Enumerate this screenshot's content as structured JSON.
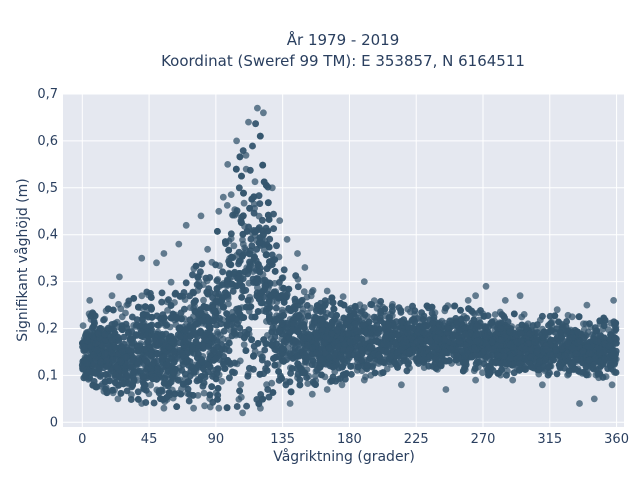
{
  "chart_data": {
    "type": "scatter",
    "title": "År 1979 - 2019",
    "subtitle": "Koordinat (Sweref 99 TM): E 353857, N 6164511",
    "xlabel": "Vågriktning (grader)",
    "ylabel": "Signifikant våghöjd (m)",
    "xlim": [
      -13,
      365
    ],
    "ylim": [
      -0.01,
      0.7
    ],
    "xticks": [
      0,
      45,
      90,
      135,
      180,
      225,
      270,
      315,
      360
    ],
    "xtick_labels": [
      "0",
      "45",
      "90",
      "135",
      "180",
      "225",
      "270",
      "315",
      "360"
    ],
    "yticks": [
      0,
      0.1,
      0.2,
      0.3,
      0.4,
      0.5,
      0.6,
      0.7
    ],
    "ytick_labels": [
      "0",
      "0,1",
      "0,2",
      "0,3",
      "0,4",
      "0,5",
      "0,6",
      "0,7"
    ],
    "grid": true,
    "colors": {
      "marker": "#34566e",
      "plot_bg": "#e5e8f0",
      "grid": "#ffffff",
      "text": "#2a3f5f"
    },
    "envelope": {
      "x": [
        0,
        15,
        30,
        45,
        60,
        75,
        90,
        100,
        105,
        110,
        115,
        120,
        125,
        130,
        140,
        150,
        160,
        180,
        200,
        225,
        250,
        270,
        300,
        330,
        360
      ],
      "y_lower": [
        0.08,
        0.06,
        0.05,
        0.04,
        0.03,
        0.03,
        0.03,
        0.03,
        0.03,
        0.03,
        0.03,
        0.04,
        0.04,
        0.05,
        0.06,
        0.07,
        0.08,
        0.09,
        0.1,
        0.11,
        0.11,
        0.1,
        0.1,
        0.1,
        0.09
      ],
      "y_upper": [
        0.23,
        0.24,
        0.26,
        0.28,
        0.3,
        0.34,
        0.4,
        0.5,
        0.56,
        0.62,
        0.66,
        0.63,
        0.55,
        0.42,
        0.33,
        0.3,
        0.28,
        0.27,
        0.26,
        0.25,
        0.25,
        0.24,
        0.23,
        0.23,
        0.22
      ]
    },
    "outliers": [
      [
        5,
        0.26
      ],
      [
        15,
        0.22
      ],
      [
        20,
        0.27
      ],
      [
        25,
        0.31
      ],
      [
        30,
        0.25
      ],
      [
        40,
        0.35
      ],
      [
        50,
        0.34
      ],
      [
        55,
        0.36
      ],
      [
        65,
        0.38
      ],
      [
        70,
        0.42
      ],
      [
        80,
        0.44
      ],
      [
        92,
        0.45
      ],
      [
        95,
        0.48
      ],
      [
        98,
        0.55
      ],
      [
        104,
        0.6
      ],
      [
        112,
        0.64
      ],
      [
        118,
        0.67
      ],
      [
        122,
        0.66
      ],
      [
        128,
        0.5
      ],
      [
        133,
        0.43
      ],
      [
        138,
        0.39
      ],
      [
        145,
        0.36
      ],
      [
        150,
        0.33
      ],
      [
        165,
        0.28
      ],
      [
        190,
        0.3
      ],
      [
        260,
        0.26
      ],
      [
        265,
        0.27
      ],
      [
        272,
        0.29
      ],
      [
        285,
        0.26
      ],
      [
        295,
        0.27
      ],
      [
        320,
        0.24
      ],
      [
        340,
        0.25
      ],
      [
        358,
        0.26
      ],
      [
        24,
        0.05
      ],
      [
        40,
        0.04
      ],
      [
        55,
        0.03
      ],
      [
        75,
        0.03
      ],
      [
        92,
        0.03
      ],
      [
        108,
        0.02
      ],
      [
        120,
        0.03
      ],
      [
        140,
        0.04
      ],
      [
        155,
        0.06
      ],
      [
        165,
        0.07
      ],
      [
        175,
        0.08
      ],
      [
        190,
        0.09
      ],
      [
        215,
        0.08
      ],
      [
        245,
        0.07
      ],
      [
        265,
        0.09
      ],
      [
        290,
        0.09
      ],
      [
        310,
        0.08
      ],
      [
        335,
        0.04
      ],
      [
        345,
        0.05
      ],
      [
        357,
        0.08
      ]
    ],
    "n_samples": 7000
  }
}
